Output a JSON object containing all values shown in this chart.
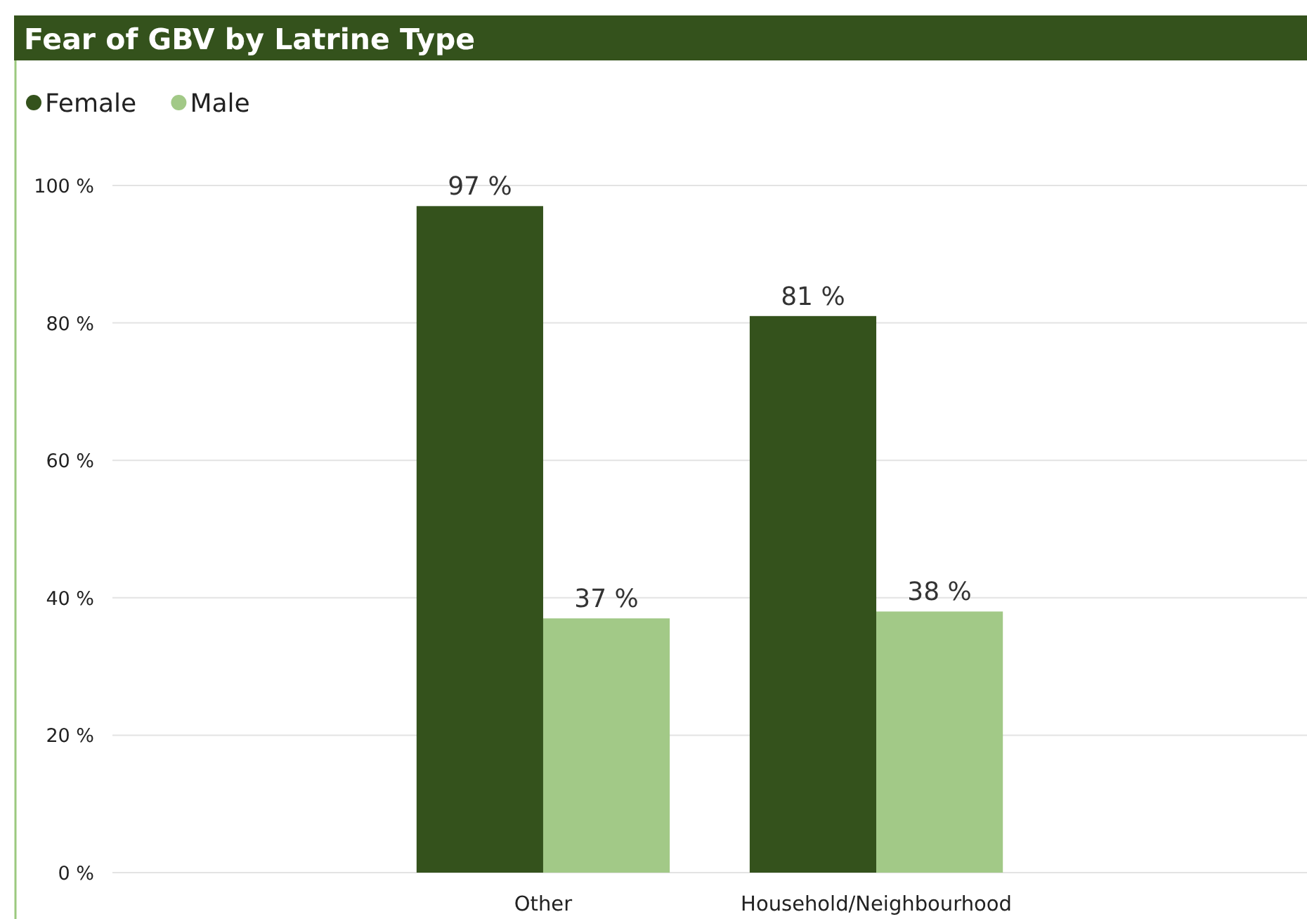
{
  "chart_data": {
    "type": "bar",
    "title": "Fear of GBV by Latrine Type",
    "categories": [
      "Other",
      "Household/Neighbourhood"
    ],
    "series": [
      {
        "name": "Female",
        "color": "#34521c",
        "values": [
          97,
          81
        ],
        "value_labels": [
          "97 %",
          "81 %"
        ]
      },
      {
        "name": "Male",
        "color": "#a2c987",
        "values": [
          37,
          38
        ],
        "value_labels": [
          "37 %",
          "38 %"
        ]
      }
    ],
    "ylim": [
      0,
      100
    ],
    "yticks": [
      {
        "value": 0,
        "label": "0 %"
      },
      {
        "value": 20,
        "label": "20 %"
      },
      {
        "value": 40,
        "label": "40 %"
      },
      {
        "value": 60,
        "label": "60 %"
      },
      {
        "value": 80,
        "label": "80 %"
      },
      {
        "value": 100,
        "label": "100 %"
      }
    ],
    "grid": "y",
    "legend": "top left"
  }
}
